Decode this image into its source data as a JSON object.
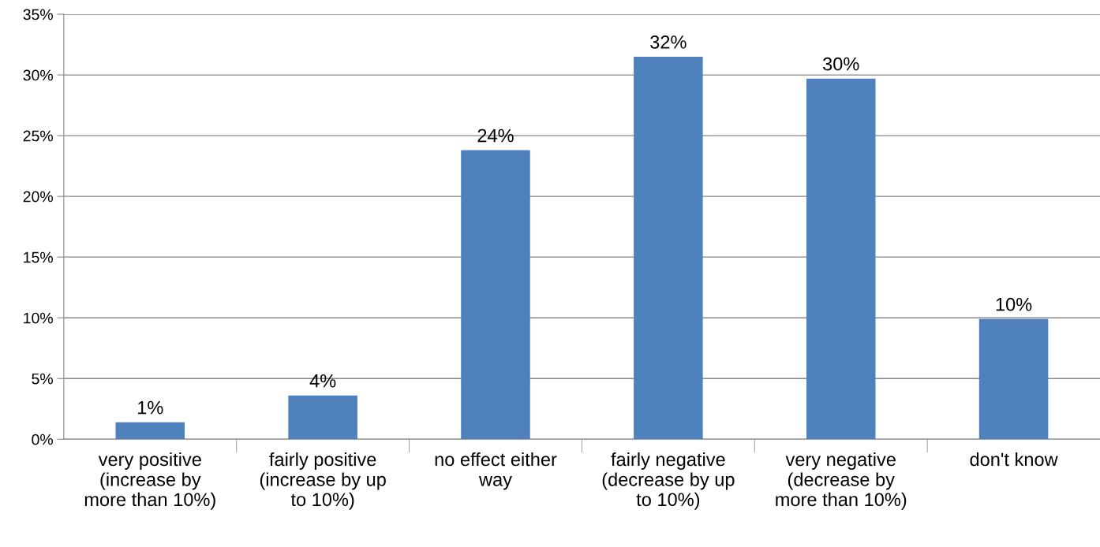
{
  "chart_data": {
    "type": "bar",
    "categories": [
      "very positive\n(increase by\nmore than 10%)",
      "fairly positive\n(increase by up\nto 10%)",
      "no effect either\nway",
      "fairly negative\n(decrease by up\nto 10%)",
      "very negative\n(decrease by\nmore than 10%)",
      "don't know"
    ],
    "values": [
      1.4,
      3.6,
      23.8,
      31.5,
      29.7,
      9.9
    ],
    "value_labels": [
      "1%",
      "4%",
      "24%",
      "32%",
      "30%",
      "10%"
    ],
    "color": "#4f81bd",
    "ylim": [
      0,
      35
    ],
    "yticks": [
      {
        "value": 0,
        "label": "0%"
      },
      {
        "value": 5,
        "label": "5%"
      },
      {
        "value": 10,
        "label": "10%"
      },
      {
        "value": 15,
        "label": "15%"
      },
      {
        "value": 20,
        "label": "20%"
      },
      {
        "value": 25,
        "label": "25%"
      },
      {
        "value": 30,
        "label": "30%"
      },
      {
        "value": 35,
        "label": "35%"
      }
    ],
    "grid": "y",
    "legend": false
  }
}
